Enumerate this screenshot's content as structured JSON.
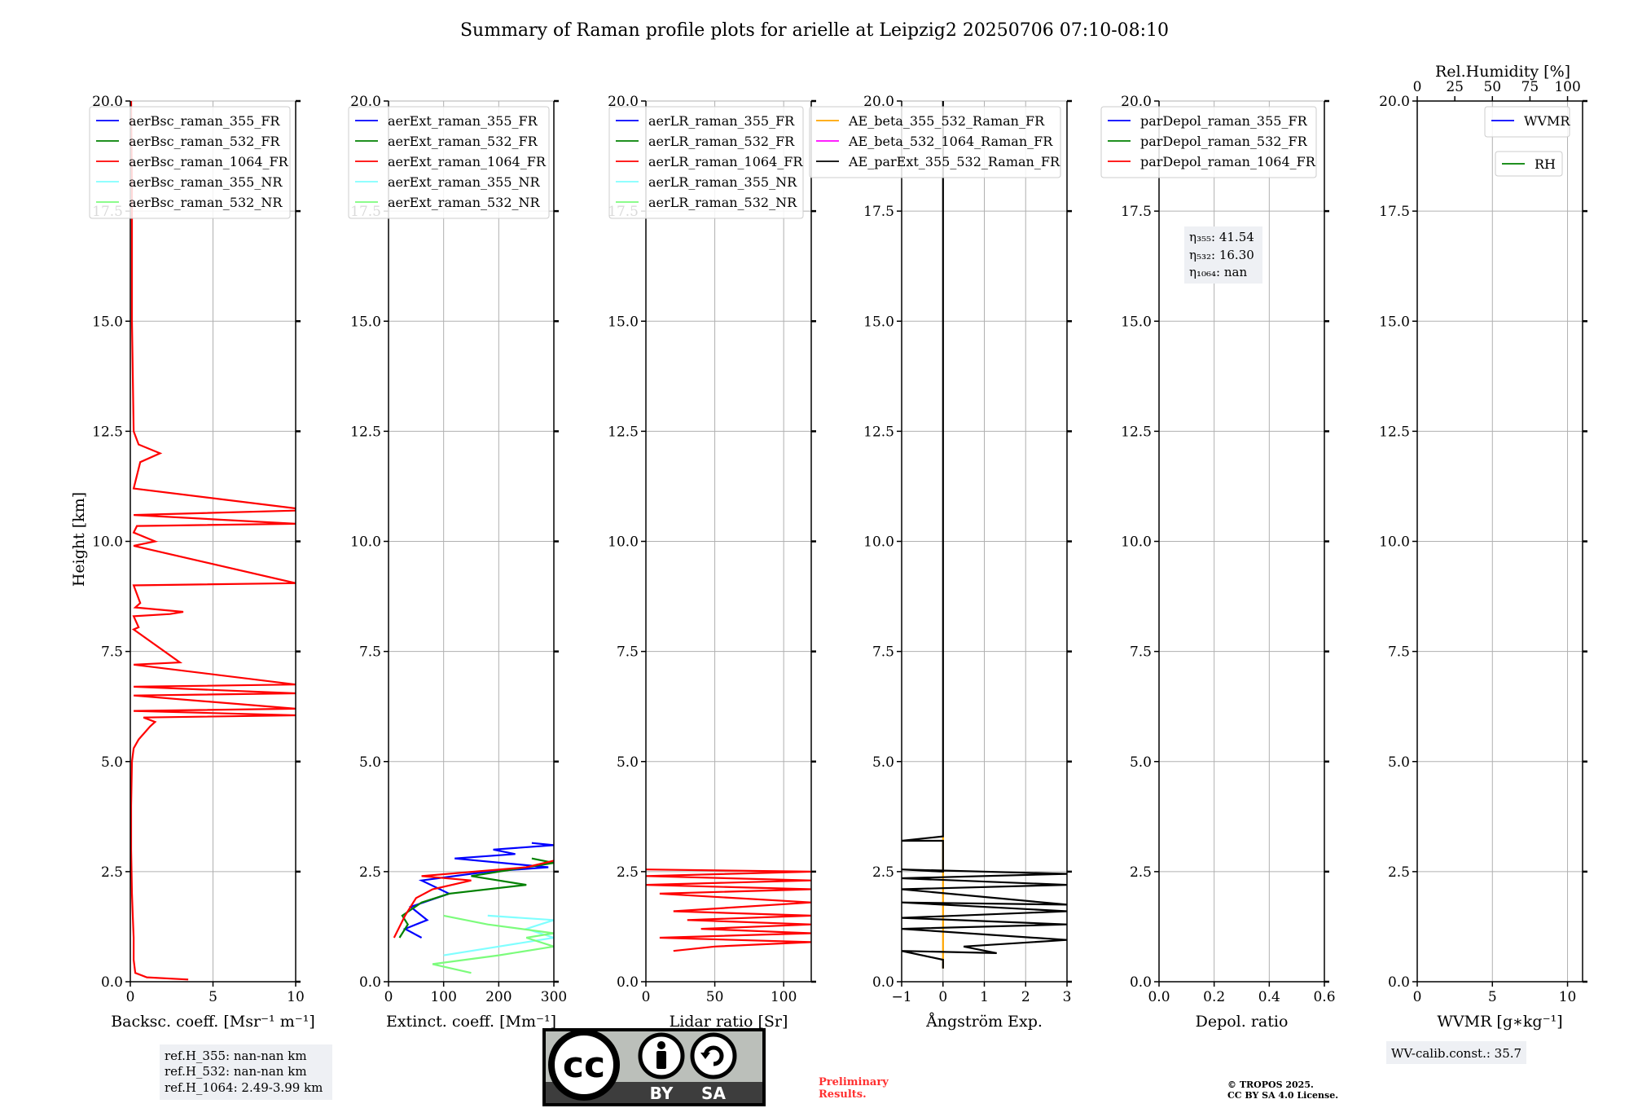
{
  "title": "Summary of Raman profile plots for arielle at Leipzig2 20250706 07:10-08:10",
  "y_axis_label": "Height [km]",
  "y_ticks": [
    "0.0",
    "2.5",
    "5.0",
    "7.5",
    "10.0",
    "12.5",
    "15.0",
    "17.5",
    "20.0"
  ],
  "colors": {
    "blue": "#0000ff",
    "green": "#008000",
    "red": "#ff0000",
    "cyan": "#80ffff",
    "lightgreen": "#7cfc7c",
    "orange": "#ffa500",
    "magenta": "#ff00ff",
    "black": "#000000",
    "grid": "#b0b0b0",
    "info_box": "#eef0f4",
    "preliminary": "#ff3030"
  },
  "chart_data": [
    {
      "type": "line",
      "xlabel": "Backsc. coeff. [Msr⁻¹ m⁻¹]",
      "xlim": [
        0,
        10
      ],
      "ylim": [
        0,
        20
      ],
      "x_ticks": [
        "0",
        "5",
        "10"
      ],
      "legend": [
        "aerBsc_raman_355_FR",
        "aerBsc_raman_532_FR",
        "aerBsc_raman_1064_FR",
        "aerBsc_raman_355_NR",
        "aerBsc_raman_532_NR"
      ],
      "series": [
        {
          "name": "aerBsc_raman_1064_FR",
          "color": "red",
          "points": [
            [
              3.5,
              0.05
            ],
            [
              1.0,
              0.1
            ],
            [
              0.3,
              0.2
            ],
            [
              0.2,
              0.5
            ],
            [
              0.2,
              1.0
            ],
            [
              0.15,
              1.5
            ],
            [
              0.1,
              2.0
            ],
            [
              0.05,
              3.0
            ],
            [
              0.05,
              4.0
            ],
            [
              0.1,
              5.0
            ],
            [
              0.2,
              5.3
            ],
            [
              0.5,
              5.5
            ],
            [
              1.2,
              5.8
            ],
            [
              1.5,
              5.9
            ],
            [
              0.8,
              6.0
            ],
            [
              10,
              6.05
            ],
            [
              0.2,
              6.15
            ],
            [
              10,
              6.2
            ],
            [
              0.2,
              6.5
            ],
            [
              10,
              6.55
            ],
            [
              0.2,
              6.7
            ],
            [
              10,
              6.75
            ],
            [
              0.2,
              7.2
            ],
            [
              3.0,
              7.25
            ],
            [
              0.2,
              8.0
            ],
            [
              0.5,
              8.05
            ],
            [
              0.2,
              8.3
            ],
            [
              2.4,
              8.35
            ],
            [
              3.2,
              8.4
            ],
            [
              0.3,
              8.5
            ],
            [
              0.6,
              8.6
            ],
            [
              0.2,
              9.0
            ],
            [
              10,
              9.05
            ],
            [
              0.2,
              9.9
            ],
            [
              1.5,
              10.0
            ],
            [
              0.2,
              10.2
            ],
            [
              0.4,
              10.35
            ],
            [
              10,
              10.4
            ],
            [
              0.2,
              10.6
            ],
            [
              10,
              10.7
            ],
            [
              10,
              10.75
            ],
            [
              0.2,
              11.2
            ],
            [
              0.6,
              11.8
            ],
            [
              1.8,
              12.0
            ],
            [
              0.5,
              12.2
            ],
            [
              0.2,
              12.5
            ],
            [
              0.1,
              15.0
            ],
            [
              0.1,
              18.0
            ],
            [
              0.05,
              20.0
            ]
          ]
        }
      ]
    },
    {
      "type": "line",
      "xlabel": "Extinct. coeff. [Mm⁻¹]",
      "xlim": [
        0,
        300
      ],
      "ylim": [
        0,
        20
      ],
      "x_ticks": [
        "0",
        "100",
        "200",
        "300"
      ],
      "legend": [
        "aerExt_raman_355_FR",
        "aerExt_raman_532_FR",
        "aerExt_raman_1064_FR",
        "aerExt_raman_355_NR",
        "aerExt_raman_532_NR"
      ],
      "series": [
        {
          "name": "aerExt_raman_355_FR",
          "color": "blue",
          "points": [
            [
              60,
              1.0
            ],
            [
              30,
              1.2
            ],
            [
              70,
              1.4
            ],
            [
              40,
              1.7
            ],
            [
              110,
              2.0
            ],
            [
              60,
              2.3
            ],
            [
              180,
              2.5
            ],
            [
              290,
              2.6
            ],
            [
              120,
              2.8
            ],
            [
              230,
              2.9
            ],
            [
              190,
              3.0
            ],
            [
              300,
              3.1
            ],
            [
              260,
              3.15
            ]
          ]
        },
        {
          "name": "aerExt_raman_532_FR",
          "color": "green",
          "points": [
            [
              20,
              1.0
            ],
            [
              35,
              1.3
            ],
            [
              25,
              1.5
            ],
            [
              60,
              1.8
            ],
            [
              110,
              2.0
            ],
            [
              250,
              2.2
            ],
            [
              150,
              2.4
            ],
            [
              300,
              2.7
            ],
            [
              260,
              2.8
            ]
          ]
        },
        {
          "name": "aerExt_raman_1064_FR",
          "color": "red",
          "points": [
            [
              10,
              1.0
            ],
            [
              30,
              1.5
            ],
            [
              50,
              1.9
            ],
            [
              80,
              2.1
            ],
            [
              150,
              2.3
            ],
            [
              60,
              2.4
            ],
            [
              250,
              2.6
            ],
            [
              300,
              2.75
            ]
          ]
        },
        {
          "name": "aerExt_raman_355_NR",
          "color": "cyan",
          "points": [
            [
              100,
              0.6
            ],
            [
              200,
              0.8
            ],
            [
              300,
              1.0
            ],
            [
              250,
              1.2
            ],
            [
              300,
              1.4
            ],
            [
              180,
              1.5
            ]
          ]
        },
        {
          "name": "aerExt_raman_532_NR",
          "color": "lightgreen",
          "points": [
            [
              150,
              0.2
            ],
            [
              80,
              0.4
            ],
            [
              200,
              0.6
            ],
            [
              300,
              0.8
            ],
            [
              250,
              1.0
            ],
            [
              300,
              1.1
            ],
            [
              180,
              1.3
            ],
            [
              100,
              1.5
            ]
          ]
        }
      ]
    },
    {
      "type": "line",
      "xlabel": "Lidar ratio [Sr]",
      "xlim": [
        0,
        120
      ],
      "ylim": [
        0,
        20
      ],
      "x_ticks": [
        "0",
        "50",
        "100"
      ],
      "legend": [
        "aerLR_raman_355_FR",
        "aerLR_raman_532_FR",
        "aerLR_raman_1064_FR",
        "aerLR_raman_355_NR",
        "aerLR_raman_532_NR"
      ],
      "series": [
        {
          "name": "aerLR_raman_1064_FR",
          "color": "red",
          "points": [
            [
              20,
              0.7
            ],
            [
              50,
              0.8
            ],
            [
              120,
              0.9
            ],
            [
              10,
              1.0
            ],
            [
              120,
              1.1
            ],
            [
              40,
              1.2
            ],
            [
              120,
              1.3
            ],
            [
              30,
              1.4
            ],
            [
              120,
              1.5
            ],
            [
              20,
              1.6
            ],
            [
              120,
              1.8
            ],
            [
              10,
              2.0
            ],
            [
              120,
              2.1
            ],
            [
              0,
              2.2
            ],
            [
              120,
              2.3
            ],
            [
              0,
              2.4
            ],
            [
              120,
              2.5
            ],
            [
              0,
              2.55
            ]
          ]
        }
      ]
    },
    {
      "type": "line",
      "xlabel": "Ångström Exp.",
      "xlim": [
        -1,
        3
      ],
      "ylim": [
        0,
        20
      ],
      "x_ticks": [
        "−1",
        "0",
        "1",
        "2",
        "3"
      ],
      "legend": [
        "AE_beta_355_532_Raman_FR",
        "AE_beta_532_1064_Raman_FR",
        "AE_parExt_355_532_Raman_FR"
      ],
      "series": [
        {
          "name": "AE_beta_355_532_Raman_FR",
          "color": "orange",
          "points": [
            [
              0,
              0.3
            ],
            [
              0,
              0.8
            ],
            [
              0,
              1.5
            ],
            [
              0,
              2.5
            ],
            [
              0,
              3.3
            ]
          ]
        },
        {
          "name": "AE_parExt_355_532_Raman_FR",
          "color": "black",
          "points": [
            [
              0,
              0.3
            ],
            [
              0,
              0.5
            ],
            [
              -1,
              0.7
            ],
            [
              1.3,
              0.65
            ],
            [
              0.5,
              0.8
            ],
            [
              3,
              0.95
            ],
            [
              -1,
              1.2
            ],
            [
              3,
              1.3
            ],
            [
              -1,
              1.45
            ],
            [
              3,
              1.6
            ],
            [
              -1,
              1.8
            ],
            [
              3,
              1.75
            ],
            [
              -1,
              2.1
            ],
            [
              3,
              2.2
            ],
            [
              -1,
              2.35
            ],
            [
              3,
              2.45
            ],
            [
              -1,
              2.55
            ],
            [
              0,
              2.5
            ],
            [
              0,
              3.2
            ],
            [
              -1,
              3.2
            ],
            [
              0,
              3.3
            ],
            [
              0,
              20
            ]
          ]
        }
      ]
    },
    {
      "type": "line",
      "xlabel": "Depol. ratio",
      "xlim": [
        0,
        0.6
      ],
      "ylim": [
        0,
        20
      ],
      "x_ticks": [
        "0.0",
        "0.2",
        "0.4",
        "0.6"
      ],
      "legend": [
        "parDepol_raman_355_FR",
        "parDepol_raman_532_FR",
        "parDepol_raman_1064_FR"
      ],
      "series": []
    },
    {
      "type": "line",
      "xlabel": "WVMR [g∗kg⁻¹]",
      "xlim": [
        0,
        11
      ],
      "ylim": [
        0,
        20
      ],
      "x_ticks": [
        "0",
        "5",
        "10"
      ],
      "top_xlabel": "Rel.Humidity [%]",
      "top_xlim": [
        0,
        110
      ],
      "top_x_ticks": [
        "0",
        "25",
        "50",
        "75",
        "100"
      ],
      "legend": [
        "WVMR"
      ],
      "legend2": [
        "RH"
      ],
      "series": []
    }
  ],
  "annotations": {
    "eta_355": "η₃₅₅: 41.54",
    "eta_532": "η₅₃₂: 16.30",
    "eta_1064": "η₁₀₆₄: nan",
    "refh_355": "ref.H_355: nan-nan km",
    "refh_532": "ref.H_532: nan-nan km",
    "refh_1064": "ref.H_1064: 2.49-3.99 km",
    "wv_calib": "WV-calib.const.: 35.7",
    "preliminary_1": "Preliminary",
    "preliminary_2": "Results.",
    "copyright_1": "© TROPOS 2025.",
    "copyright_2": "CC BY SA 4.0 License.",
    "license_by": "BY",
    "license_sa": "SA",
    "license_cc": "cc"
  }
}
